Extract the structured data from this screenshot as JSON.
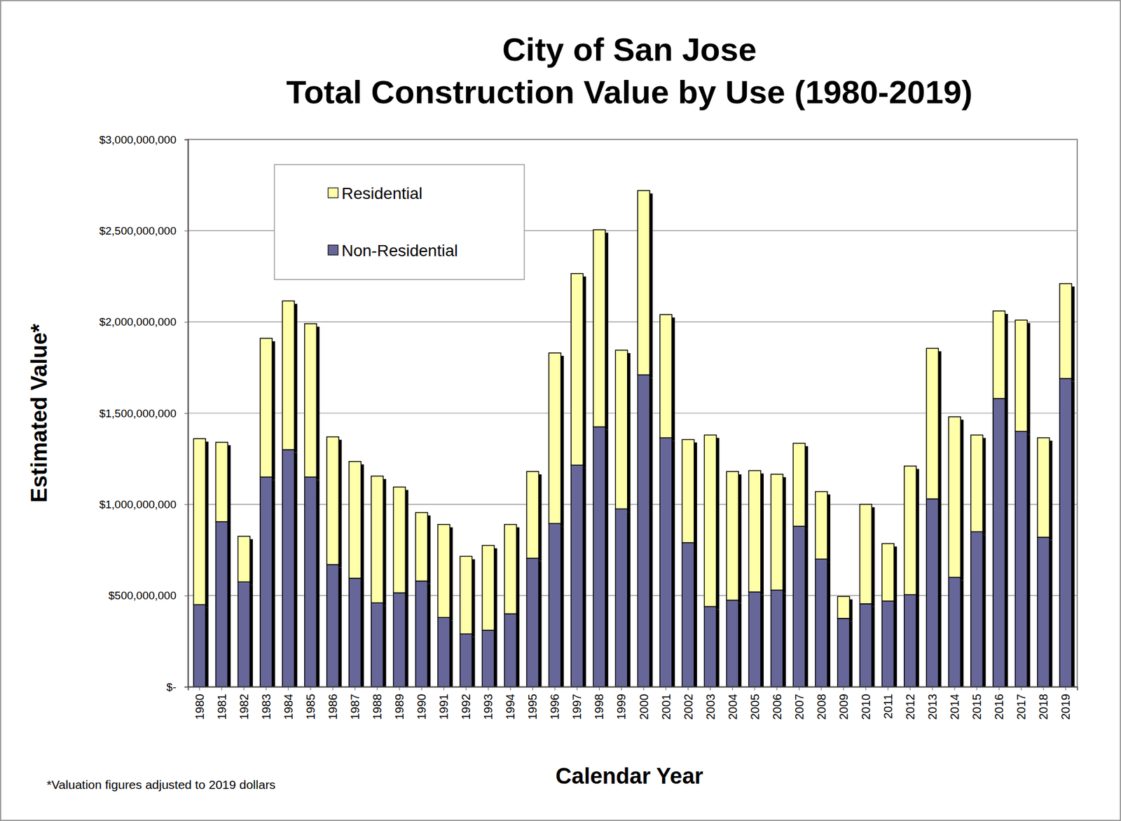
{
  "chart_data": {
    "type": "bar",
    "title": "City of San Jose",
    "subtitle": "Total Construction Value by Use (1980-2019)",
    "x_label": "Calendar Year",
    "y_label": "Estimated Value*",
    "annotations": [
      "*Valuation figures adjusted to 2019 dollars"
    ],
    "categories": [
      "1980",
      "1981",
      "1982",
      "1983",
      "1984",
      "1985",
      "1986",
      "1987",
      "1988",
      "1989",
      "1990",
      "1991",
      "1992",
      "1993",
      "1994",
      "1995",
      "1996",
      "1997",
      "1998",
      "1999",
      "2000",
      "2001",
      "2002",
      "2003",
      "2004",
      "2005",
      "2006",
      "2007",
      "2008",
      "2009",
      "2010",
      "2011",
      "2012",
      "2013",
      "2014",
      "2015",
      "2016",
      "2017",
      "2018",
      "2019"
    ],
    "series": [
      {
        "name": "Non-Residential",
        "color": "#666699",
        "values": [
          450000000,
          905000000,
          575000000,
          1150000000,
          1300000000,
          1150000000,
          670000000,
          595000000,
          460000000,
          515000000,
          580000000,
          380000000,
          290000000,
          310000000,
          400000000,
          705000000,
          895000000,
          1215000000,
          1425000000,
          975000000,
          1710000000,
          1365000000,
          790000000,
          440000000,
          475000000,
          520000000,
          530000000,
          880000000,
          700000000,
          375000000,
          455000000,
          470000000,
          505000000,
          1030000000,
          600000000,
          850000000,
          1580000000,
          1400000000,
          820000000,
          1690000000
        ]
      },
      {
        "name": "Residential",
        "color": "#FFFFAA",
        "values": [
          910000000,
          435000000,
          250000000,
          760000000,
          815000000,
          840000000,
          700000000,
          640000000,
          695000000,
          580000000,
          375000000,
          510000000,
          425000000,
          465000000,
          490000000,
          475000000,
          935000000,
          1050000000,
          1080000000,
          870000000,
          1010000000,
          675000000,
          565000000,
          940000000,
          705000000,
          665000000,
          635000000,
          455000000,
          370000000,
          120000000,
          545000000,
          315000000,
          705000000,
          825000000,
          880000000,
          530000000,
          480000000,
          610000000,
          545000000,
          520000000
        ]
      }
    ],
    "stacked": true,
    "ylim": [
      0,
      3000000000
    ],
    "yticks": [
      {
        "value": 0,
        "label": "$-"
      },
      {
        "value": 500000000,
        "label": "$500,000,000"
      },
      {
        "value": 1000000000,
        "label": "$1,000,000,000"
      },
      {
        "value": 1500000000,
        "label": "$1,500,000,000"
      },
      {
        "value": 2000000000,
        "label": "$2,000,000,000"
      },
      {
        "value": 2500000000,
        "label": "$2,500,000,000"
      },
      {
        "value": 3000000000,
        "label": "$3,000,000,000"
      }
    ],
    "grid": true,
    "legend": "upper left"
  }
}
